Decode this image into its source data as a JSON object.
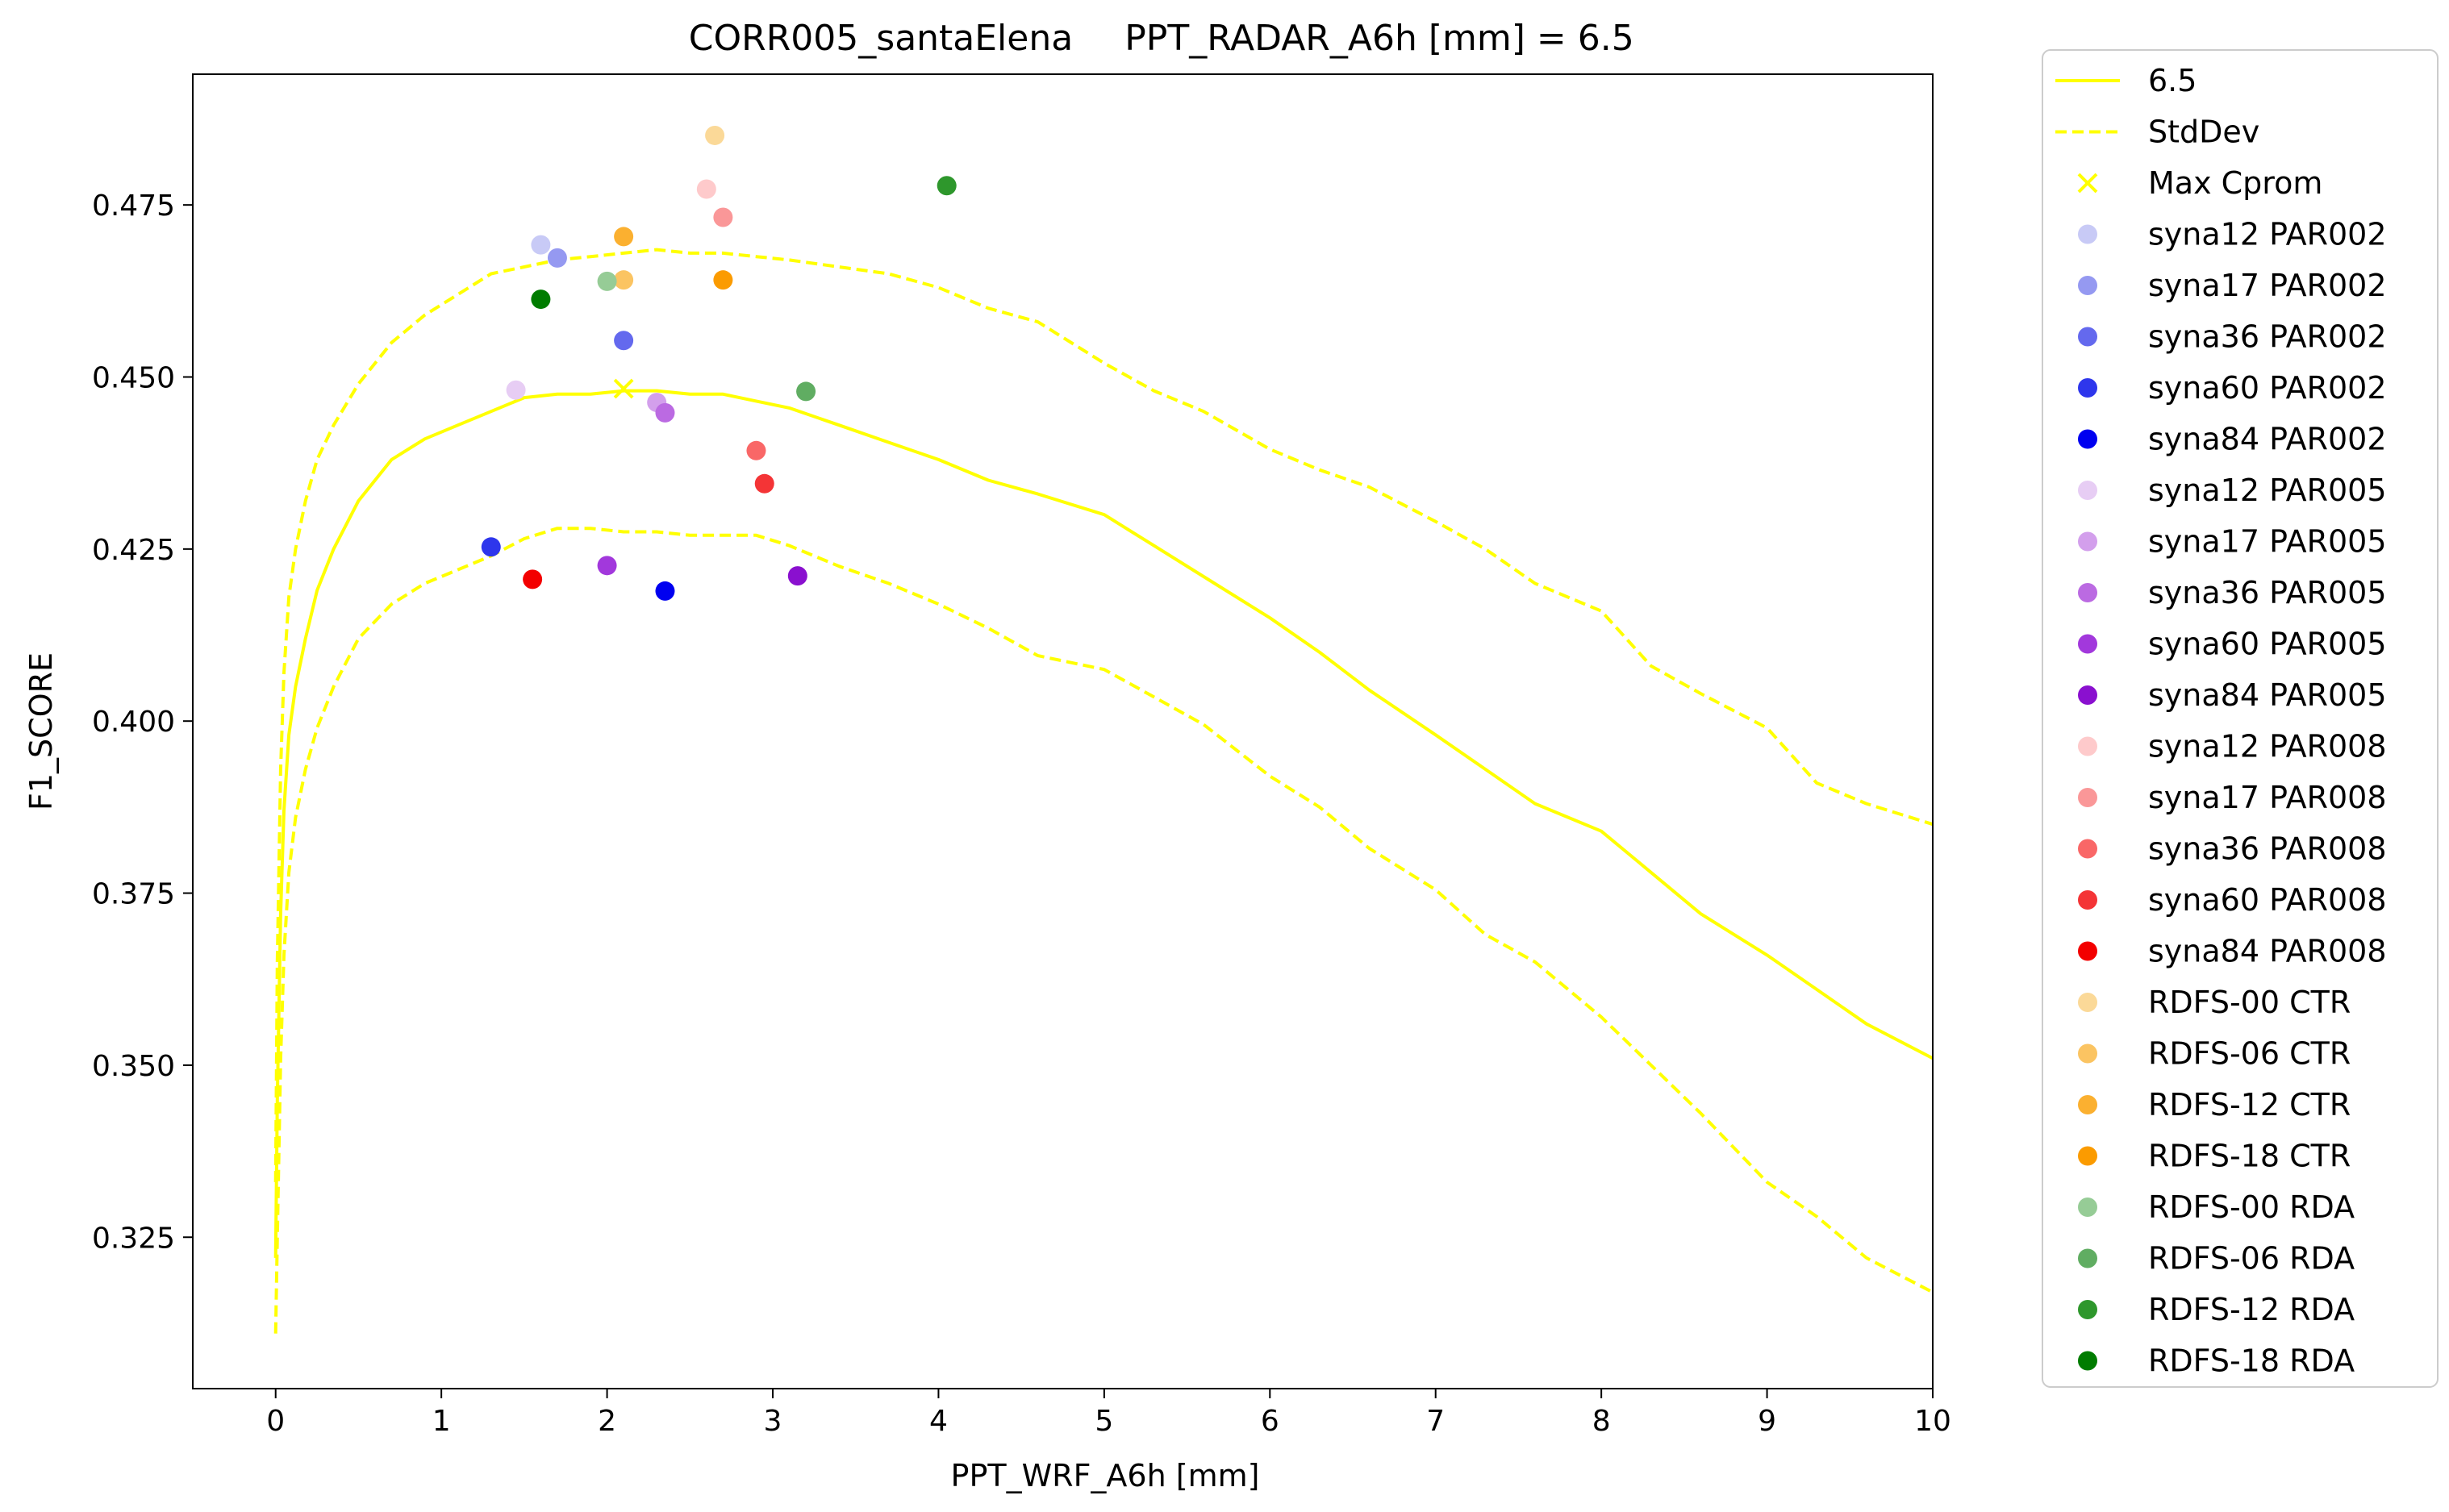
{
  "chart_data": {
    "type": "scatter",
    "title_left": "CORR005_santaElena",
    "title_right": "PPT_RADAR_A6h [mm] = 6.5",
    "xlabel": "PPT_WRF_A6h [mm]",
    "ylabel": "F1_SCORE",
    "xlim": [
      -0.5,
      10
    ],
    "ylim": [
      0.303,
      0.494
    ],
    "xticks": [
      "0",
      "1",
      "2",
      "3",
      "4",
      "5",
      "6",
      "7",
      "8",
      "9",
      "10"
    ],
    "yticks": [
      "0.325",
      "0.350",
      "0.375",
      "0.400",
      "0.425",
      "0.450",
      "0.475"
    ],
    "grid": false,
    "legend_position": "outside-right",
    "line_color": "#ffff00",
    "lines": [
      {
        "name": "6.5",
        "style": "solid",
        "x": [
          0,
          0.01,
          0.03,
          0.05,
          0.08,
          0.12,
          0.18,
          0.25,
          0.35,
          0.5,
          0.7,
          0.9,
          1.1,
          1.3,
          1.5,
          1.7,
          1.9,
          2.1,
          2.3,
          2.5,
          2.7,
          2.9,
          3.1,
          3.4,
          3.7,
          4.0,
          4.3,
          4.6,
          5.0,
          5.3,
          5.6,
          6.0,
          6.3,
          6.6,
          7.0,
          7.3,
          7.6,
          8.0,
          8.3,
          8.6,
          9.0,
          9.3,
          9.6,
          10.0
        ],
        "y": [
          0.322,
          0.345,
          0.372,
          0.387,
          0.398,
          0.405,
          0.412,
          0.419,
          0.425,
          0.432,
          0.438,
          0.441,
          0.443,
          0.445,
          0.447,
          0.4475,
          0.4475,
          0.448,
          0.448,
          0.4475,
          0.4475,
          0.4465,
          0.4455,
          0.443,
          0.4405,
          0.438,
          0.435,
          0.433,
          0.43,
          0.4255,
          0.421,
          0.415,
          0.41,
          0.4045,
          0.398,
          0.393,
          0.388,
          0.384,
          0.378,
          0.372,
          0.366,
          0.361,
          0.356,
          0.351
        ]
      },
      {
        "name": "StdDev",
        "style": "dashed",
        "x": [
          0,
          0.01,
          0.03,
          0.05,
          0.08,
          0.12,
          0.18,
          0.25,
          0.35,
          0.5,
          0.7,
          0.9,
          1.1,
          1.3,
          1.5,
          1.7,
          1.9,
          2.1,
          2.3,
          2.5,
          2.7,
          2.9,
          3.1,
          3.4,
          3.7,
          4.0,
          4.3,
          4.6,
          5.0,
          5.3,
          5.6,
          6.0,
          6.3,
          6.6,
          7.0,
          7.3,
          7.6,
          8.0,
          8.3,
          8.6,
          9.0,
          9.3,
          9.6,
          10.0
        ],
        "y": [
          0.333,
          0.365,
          0.393,
          0.407,
          0.418,
          0.425,
          0.432,
          0.438,
          0.443,
          0.449,
          0.455,
          0.459,
          0.462,
          0.465,
          0.466,
          0.467,
          0.4675,
          0.468,
          0.4685,
          0.468,
          0.468,
          0.4675,
          0.467,
          0.466,
          0.465,
          0.463,
          0.46,
          0.458,
          0.452,
          0.448,
          0.445,
          0.4395,
          0.4365,
          0.434,
          0.429,
          0.425,
          0.42,
          0.416,
          0.408,
          0.404,
          0.399,
          0.391,
          0.388,
          0.385
        ]
      },
      {
        "name": "",
        "style": "dashed",
        "x": [
          0,
          0.01,
          0.03,
          0.05,
          0.08,
          0.12,
          0.18,
          0.25,
          0.35,
          0.5,
          0.7,
          0.9,
          1.1,
          1.3,
          1.5,
          1.7,
          1.9,
          2.1,
          2.3,
          2.5,
          2.7,
          2.9,
          3.1,
          3.4,
          3.7,
          4.0,
          4.3,
          4.6,
          5.0,
          5.3,
          5.6,
          6.0,
          6.3,
          6.6,
          7.0,
          7.3,
          7.6,
          8.0,
          8.3,
          8.6,
          9.0,
          9.3,
          9.6,
          10.0
        ],
        "y": [
          0.311,
          0.325,
          0.351,
          0.366,
          0.378,
          0.386,
          0.393,
          0.399,
          0.405,
          0.412,
          0.417,
          0.42,
          0.422,
          0.424,
          0.4265,
          0.428,
          0.428,
          0.4275,
          0.4275,
          0.427,
          0.427,
          0.427,
          0.4255,
          0.4225,
          0.42,
          0.417,
          0.4135,
          0.4095,
          0.4075,
          0.4035,
          0.3995,
          0.392,
          0.3875,
          0.3815,
          0.3755,
          0.369,
          0.365,
          0.357,
          0.35,
          0.343,
          0.333,
          0.328,
          0.322,
          0.317
        ]
      }
    ],
    "max_marker": {
      "name": "Max Cprom",
      "x": 2.1,
      "y": 0.4483,
      "color": "#ffff00"
    },
    "series": [
      {
        "name": "syna12 PAR002",
        "color": "#c8caf6",
        "x": 1.6,
        "y": 0.4692
      },
      {
        "name": "syna17 PAR002",
        "color": "#9599f1",
        "x": 1.7,
        "y": 0.4673
      },
      {
        "name": "syna36 PAR002",
        "color": "#6469ee",
        "x": 2.1,
        "y": 0.4553
      },
      {
        "name": "syna60 PAR002",
        "color": "#2e36ec",
        "x": 1.3,
        "y": 0.4253
      },
      {
        "name": "syna84 PAR002",
        "color": "#0000f0",
        "x": 2.35,
        "y": 0.4189
      },
      {
        "name": "syna12 PAR005",
        "color": "#e7cdf4",
        "x": 1.45,
        "y": 0.4481
      },
      {
        "name": "syna17 PAR005",
        "color": "#d39fec",
        "x": 2.3,
        "y": 0.4463
      },
      {
        "name": "syna36 PAR005",
        "color": "#bb6ae2",
        "x": 2.35,
        "y": 0.4448
      },
      {
        "name": "syna60 PAR005",
        "color": "#a238dc",
        "x": 2.0,
        "y": 0.4226
      },
      {
        "name": "syna84 PAR005",
        "color": "#8a10cf",
        "x": 3.15,
        "y": 0.4211
      },
      {
        "name": "syna12 PAR008",
        "color": "#fecacb",
        "x": 2.6,
        "y": 0.4773
      },
      {
        "name": "syna17 PAR008",
        "color": "#fa9798",
        "x": 2.7,
        "y": 0.4732
      },
      {
        "name": "syna36 PAR008",
        "color": "#f96767",
        "x": 2.9,
        "y": 0.4393
      },
      {
        "name": "syna60 PAR008",
        "color": "#f43436",
        "x": 2.95,
        "y": 0.4345
      },
      {
        "name": "syna84 PAR008",
        "color": "#f30000",
        "x": 1.55,
        "y": 0.4206
      },
      {
        "name": "RDFS-00 CTR",
        "color": "#fbd998",
        "x": 2.65,
        "y": 0.4851
      },
      {
        "name": "RDFS-06 CTR",
        "color": "#fbc462",
        "x": 2.1,
        "y": 0.4641
      },
      {
        "name": "RDFS-12 CTR",
        "color": "#fbb030",
        "x": 2.1,
        "y": 0.4704
      },
      {
        "name": "RDFS-18 CTR",
        "color": "#fb9b00",
        "x": 2.7,
        "y": 0.4641
      },
      {
        "name": "RDFS-00 RDA",
        "color": "#96cc96",
        "x": 2.0,
        "y": 0.4639
      },
      {
        "name": "RDFS-06 RDA",
        "color": "#60ad62",
        "x": 3.2,
        "y": 0.4479
      },
      {
        "name": "RDFS-12 RDA",
        "color": "#2e972c",
        "x": 4.05,
        "y": 0.4778
      },
      {
        "name": "RDFS-18 RDA",
        "color": "#007c00",
        "x": 1.6,
        "y": 0.4613
      }
    ]
  }
}
